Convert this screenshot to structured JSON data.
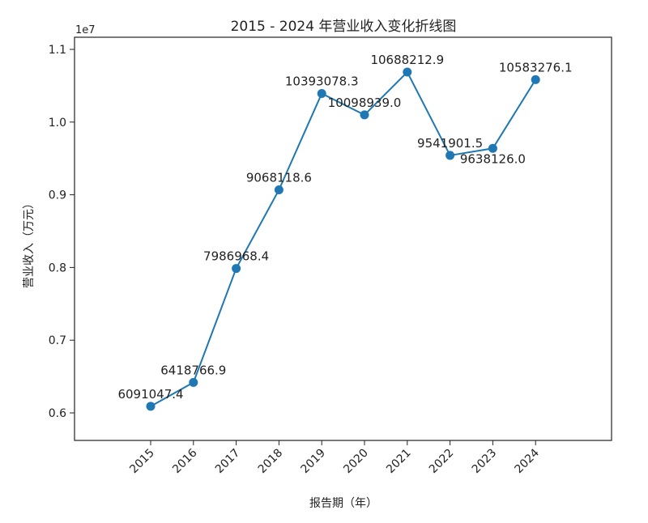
{
  "chart_data": {
    "type": "line",
    "title": "2015 - 2024 年营业收入变化折线图",
    "xlabel": "报告期（年）",
    "ylabel": "营业收入（万元）",
    "offset_text": "1e7",
    "categories": [
      "2015",
      "2016",
      "2017",
      "2018",
      "2019",
      "2020",
      "2021",
      "2022",
      "2023",
      "2024"
    ],
    "values": [
      6091047.4,
      6418766.9,
      7986968.4,
      9068118.6,
      10393078.3,
      10098939.0,
      10688212.9,
      9541901.5,
      9638126.0,
      10583276.1
    ],
    "data_labels": [
      "6091047.4",
      "6418766.9",
      "7986968.4",
      "9068118.6",
      "10393078.3",
      "10098939.0",
      "10688212.9",
      "9541901.5",
      "9638126.0",
      "10583276.1"
    ],
    "yticks": [
      0.6,
      0.7,
      0.8,
      0.9,
      1.0,
      1.1
    ],
    "ytick_labels": [
      "0.6",
      "0.7",
      "0.8",
      "0.9",
      "1.0",
      "1.1"
    ],
    "ylim": [
      0.5625,
      1.1125
    ],
    "grid": false,
    "color": "#1f77b4"
  }
}
